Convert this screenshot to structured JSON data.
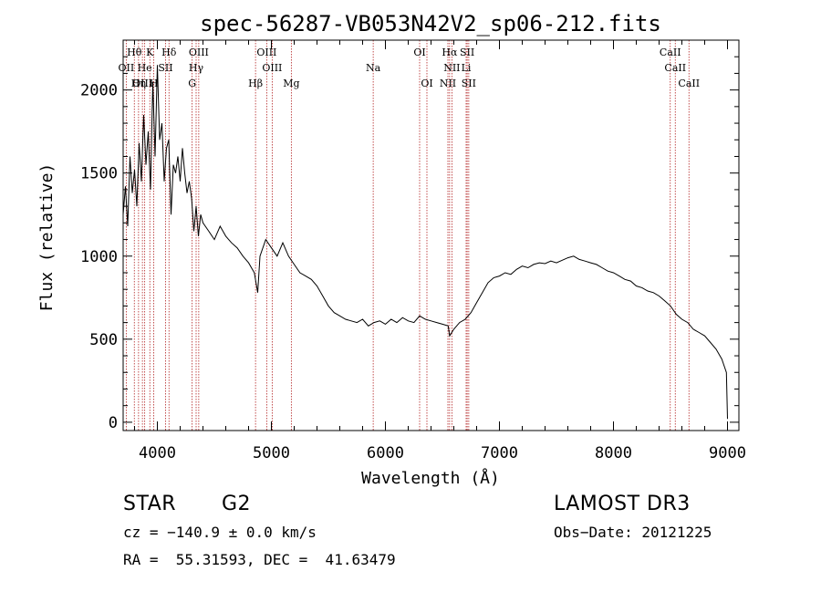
{
  "chart_data": {
    "type": "line",
    "title": "spec-56287-VB053N42V2_sp06-212.fits",
    "xlabel": "Wavelength (Å)",
    "ylabel": "Flux (relative)",
    "xlim": [
      3700,
      9100
    ],
    "ylim": [
      -50,
      2300
    ],
    "xticks": [
      4000,
      5000,
      6000,
      7000,
      8000,
      9000
    ],
    "yticks": [
      0,
      500,
      1000,
      1500,
      2000
    ],
    "spectrum": {
      "name": "flux",
      "x": [
        3700,
        3720,
        3740,
        3760,
        3780,
        3800,
        3820,
        3840,
        3860,
        3880,
        3900,
        3920,
        3940,
        3960,
        3980,
        4000,
        4020,
        4040,
        4060,
        4080,
        4100,
        4120,
        4140,
        4160,
        4180,
        4200,
        4220,
        4240,
        4260,
        4280,
        4300,
        4320,
        4340,
        4360,
        4380,
        4400,
        4450,
        4500,
        4550,
        4600,
        4650,
        4700,
        4750,
        4800,
        4850,
        4880,
        4900,
        4950,
        5000,
        5050,
        5100,
        5150,
        5200,
        5250,
        5300,
        5350,
        5400,
        5450,
        5500,
        5550,
        5600,
        5650,
        5700,
        5750,
        5800,
        5850,
        5900,
        5950,
        6000,
        6050,
        6100,
        6150,
        6200,
        6250,
        6300,
        6350,
        6400,
        6450,
        6500,
        6550,
        6563,
        6600,
        6650,
        6700,
        6750,
        6800,
        6850,
        6900,
        6950,
        7000,
        7050,
        7100,
        7150,
        7200,
        7250,
        7300,
        7350,
        7400,
        7450,
        7500,
        7550,
        7600,
        7650,
        7700,
        7750,
        7800,
        7850,
        7900,
        7950,
        8000,
        8050,
        8100,
        8150,
        8200,
        8250,
        8300,
        8350,
        8400,
        8450,
        8500,
        8550,
        8600,
        8650,
        8700,
        8750,
        8800,
        8850,
        8900,
        8950,
        8990,
        9000
      ],
      "y": [
        1250,
        1420,
        1180,
        1600,
        1380,
        1520,
        1300,
        1680,
        1450,
        1850,
        1550,
        1750,
        1400,
        2050,
        1600,
        2150,
        1700,
        1800,
        1450,
        1650,
        1700,
        1250,
        1550,
        1500,
        1600,
        1450,
        1650,
        1500,
        1380,
        1450,
        1350,
        1150,
        1300,
        1120,
        1250,
        1200,
        1150,
        1100,
        1180,
        1120,
        1080,
        1050,
        1000,
        960,
        900,
        780,
        1000,
        1100,
        1050,
        1000,
        1080,
        1000,
        950,
        900,
        880,
        860,
        820,
        760,
        700,
        660,
        640,
        620,
        610,
        600,
        620,
        580,
        600,
        610,
        590,
        620,
        600,
        630,
        610,
        600,
        640,
        620,
        610,
        600,
        590,
        580,
        520,
        560,
        600,
        620,
        660,
        720,
        780,
        840,
        870,
        880,
        900,
        890,
        920,
        940,
        930,
        950,
        960,
        955,
        970,
        960,
        975,
        990,
        1000,
        980,
        970,
        960,
        950,
        930,
        910,
        900,
        880,
        860,
        850,
        820,
        810,
        790,
        780,
        760,
        730,
        700,
        650,
        620,
        600,
        560,
        540,
        520,
        480,
        440,
        380,
        300,
        20
      ]
    },
    "lines": [
      {
        "label": "Hθ",
        "x": 3798,
        "row": 0
      },
      {
        "label": "K",
        "x": 3934,
        "row": 0
      },
      {
        "label": "Hδ",
        "x": 4102,
        "row": 0
      },
      {
        "label": "OIII",
        "x": 4363,
        "row": 0
      },
      {
        "label": "OIII",
        "x": 4959,
        "row": 0
      },
      {
        "label": "OI",
        "x": 6300,
        "row": 0
      },
      {
        "label": "Hα",
        "x": 6563,
        "row": 0
      },
      {
        "label": "SII",
        "x": 6717,
        "row": 0
      },
      {
        "label": "CaII",
        "x": 8498,
        "row": 0
      },
      {
        "label": "OII",
        "x": 3727,
        "row": 1
      },
      {
        "label": "He",
        "x": 3889,
        "row": 1
      },
      {
        "label": "SII",
        "x": 4072,
        "row": 1
      },
      {
        "label": "Hγ",
        "x": 4340,
        "row": 1
      },
      {
        "label": "OIII",
        "x": 5007,
        "row": 1
      },
      {
        "label": "Na",
        "x": 5893,
        "row": 1
      },
      {
        "label": "NII",
        "x": 6583,
        "row": 1
      },
      {
        "label": "Li",
        "x": 6708,
        "row": 1
      },
      {
        "label": "CaII",
        "x": 8542,
        "row": 1
      },
      {
        "label": "OIII",
        "x": 3869,
        "row": 2
      },
      {
        "label": "Hη",
        "x": 3835,
        "row": 2
      },
      {
        "label": "H",
        "x": 3968,
        "row": 2
      },
      {
        "label": "G",
        "x": 4305,
        "row": 2
      },
      {
        "label": "Hβ",
        "x": 4861,
        "row": 2
      },
      {
        "label": "Mg",
        "x": 5175,
        "row": 2
      },
      {
        "label": "OI",
        "x": 6364,
        "row": 2
      },
      {
        "label": "NII",
        "x": 6548,
        "row": 2
      },
      {
        "label": "SII",
        "x": 6731,
        "row": 2
      },
      {
        "label": "CaII",
        "x": 8662,
        "row": 2
      }
    ],
    "colors": {
      "spectrum": "#000000",
      "lines": "#b22222",
      "axes": "#000000"
    }
  },
  "info": {
    "object": "STAR",
    "subclass": "G2",
    "survey": "LAMOST DR3",
    "cz": "cz = −140.9 ± 0.0 km/s",
    "obsdate": "Obs−Date: 20121225",
    "radec": "RA =  55.31593, DEC =  41.63479"
  }
}
